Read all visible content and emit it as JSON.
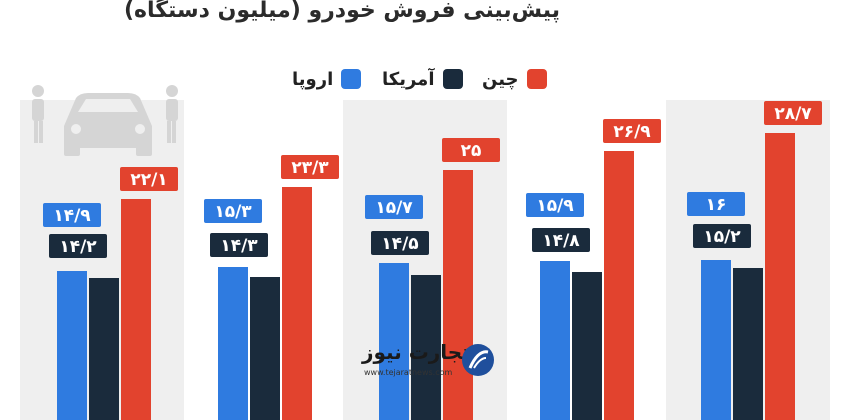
{
  "chart_data": {
    "type": "bar",
    "title": "پیش‌بینی فروش خودرو (میلیون دستگاه)",
    "categories": [
      "",
      "",
      "",
      "",
      ""
    ],
    "series": [
      {
        "name": "اروپا",
        "color": "#2f7be0",
        "values": [
          14.9,
          15.3,
          15.7,
          15.9,
          16
        ],
        "labels": [
          "۱۴/۹",
          "۱۵/۳",
          "۱۵/۷",
          "۱۵/۹",
          "۱۶"
        ]
      },
      {
        "name": "آمریکا",
        "color": "#1a2b3c",
        "values": [
          14.2,
          14.3,
          14.5,
          14.8,
          15.2
        ],
        "labels": [
          "۱۴/۲",
          "۱۴/۳",
          "۱۴/۵",
          "۱۴/۸",
          "۱۵/۲"
        ]
      },
      {
        "name": "چین",
        "color": "#e2432e",
        "values": [
          22.1,
          23.3,
          25,
          26.9,
          28.7
        ],
        "labels": [
          "۲۲/۱",
          "۲۳/۳",
          "۲۵",
          "۲۶/۹",
          "۲۸/۷"
        ]
      }
    ],
    "grid": false,
    "legend": "top-center"
  },
  "logo": {
    "name": "تجارت نیوز",
    "url": "www.tejaratnews.com",
    "icon": "tejaratnews-logo-icon"
  },
  "decor": {
    "icon": "car-salesmen-icon"
  }
}
